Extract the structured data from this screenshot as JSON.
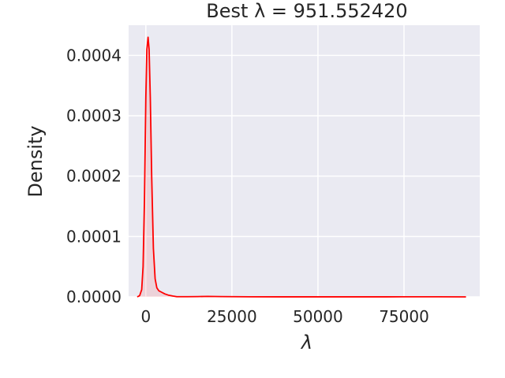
{
  "chart_data": {
    "type": "area",
    "title": "Best λ = 951.552420",
    "xlabel": "λ",
    "ylabel": "Density",
    "xlim": [
      -5000,
      97000
    ],
    "ylim": [
      0,
      0.00045
    ],
    "x_ticks": [
      0,
      25000,
      50000,
      75000
    ],
    "x_tick_labels": [
      "0",
      "25000",
      "50000",
      "75000"
    ],
    "y_ticks": [
      0.0,
      0.0001,
      0.0002,
      0.0003,
      0.0004
    ],
    "y_tick_labels": [
      "0.0000",
      "0.0001",
      "0.0002",
      "0.0003",
      "0.0004"
    ],
    "grid": true,
    "series": [
      {
        "line_color": "#ff0000",
        "fill_color": "#ff0000",
        "fill_opacity": 0.1,
        "x": [
          -2500,
          -1800,
          -1200,
          -800,
          -400,
          0,
          300,
          650,
          952,
          1300,
          1700,
          2200,
          2700,
          3200,
          3800,
          4500,
          5500,
          6500,
          7800,
          9000,
          12000,
          15000,
          18000,
          22000,
          30000,
          40000,
          55000,
          70000,
          85000,
          93000
        ],
        "y": [
          0.0,
          2e-06,
          1.2e-05,
          5e-05,
          0.00016,
          0.00033,
          0.00041,
          0.00043,
          0.00041,
          0.00033,
          0.0002,
          8e-05,
          3e-05,
          1.5e-05,
          1e-05,
          8e-06,
          5e-06,
          3e-06,
          1.5e-06,
          3e-07,
          3e-07,
          5e-07,
          8e-07,
          5e-07,
          2e-07,
          1e-07,
          1e-07,
          1e-07,
          2e-07,
          0.0
        ]
      }
    ]
  }
}
